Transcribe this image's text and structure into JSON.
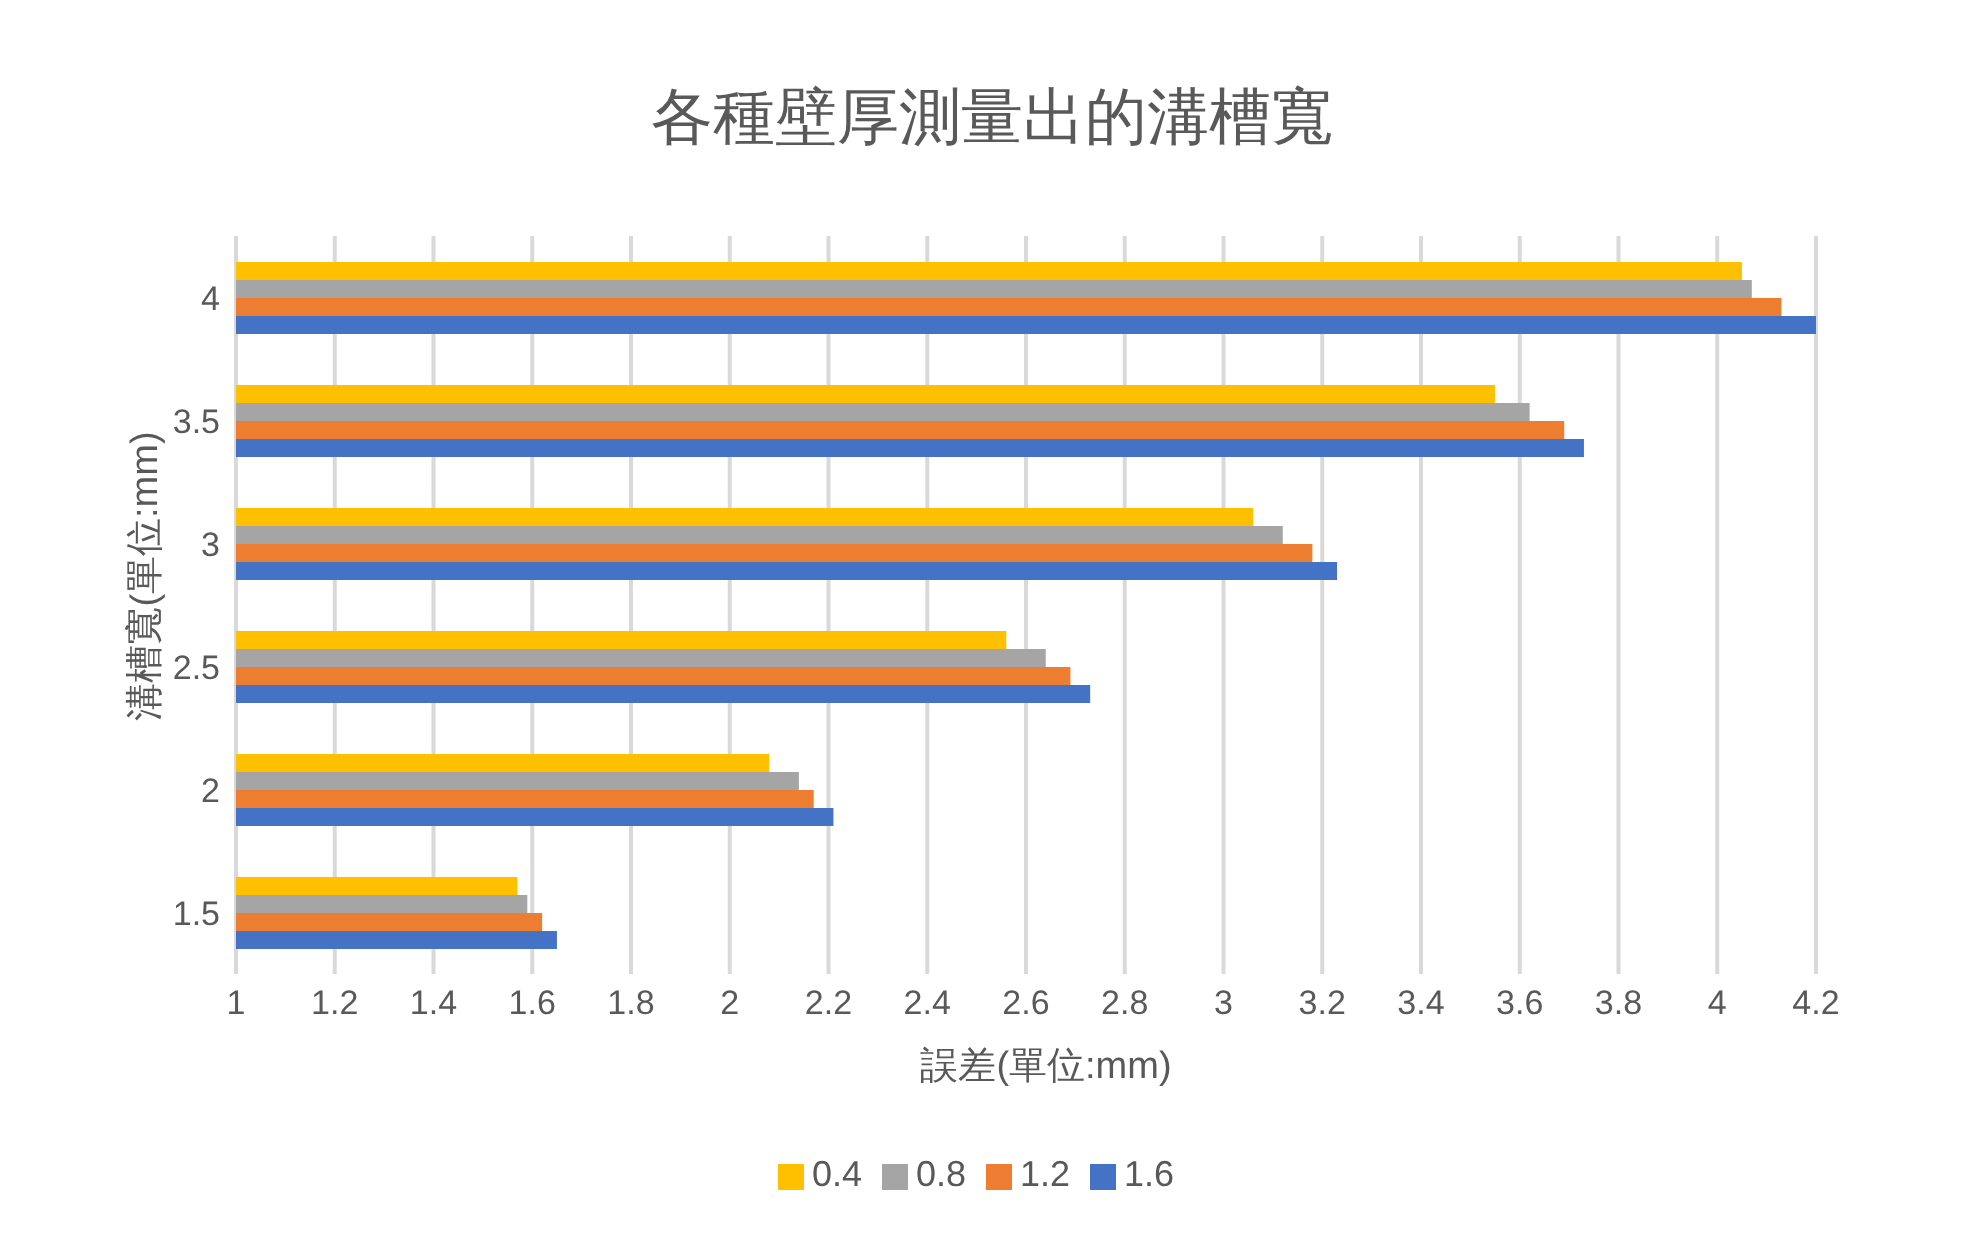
{
  "chart_data": {
    "type": "bar",
    "orientation": "horizontal",
    "title": "各種壁厚測量出的溝槽寬",
    "xlabel": "誤差(單位:mm)",
    "ylabel": "溝槽寬(單位:mm)",
    "categories": [
      "4",
      "3.5",
      "3",
      "2.5",
      "2",
      "1.5"
    ],
    "series": [
      {
        "name": "0.4",
        "color": "#ffc000",
        "values": [
          4.05,
          3.55,
          3.06,
          2.56,
          2.08,
          1.57
        ]
      },
      {
        "name": "0.8",
        "color": "#a5a5a5",
        "values": [
          4.07,
          3.62,
          3.12,
          2.64,
          2.14,
          1.59
        ]
      },
      {
        "name": "1.2",
        "color": "#ed7d31",
        "values": [
          4.13,
          3.69,
          3.18,
          2.69,
          2.17,
          1.62
        ]
      },
      {
        "name": "1.6",
        "color": "#4472c4",
        "values": [
          4.2,
          3.73,
          3.23,
          2.73,
          2.21,
          1.65
        ]
      }
    ],
    "xlim": [
      1,
      4.2
    ],
    "xticks": [
      1,
      1.2,
      1.4,
      1.6,
      1.8,
      2,
      2.2,
      2.4,
      2.6,
      2.8,
      3,
      3.2,
      3.4,
      3.6,
      3.8,
      4,
      4.2
    ],
    "grid": "x",
    "legend": "bottom"
  }
}
